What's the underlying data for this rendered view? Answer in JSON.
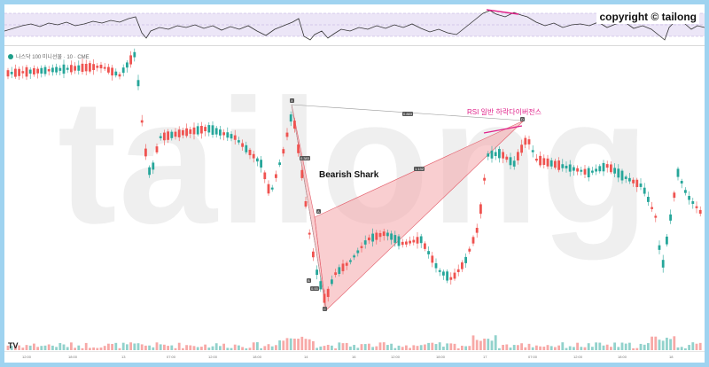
{
  "header": {
    "copyright": "copyright © tailong",
    "symbol": "나스닥 100 미니선물 · 10 · CME"
  },
  "watermark": "tailong",
  "annotations": {
    "pattern": "Bearish Shark",
    "divergence": "RSI 일반 하락다이버전스",
    "point_labels": [
      "X",
      "A",
      "B",
      "C",
      "D"
    ],
    "ratio_labels": [
      "0.883",
      "1.132",
      "0.383",
      "0.93"
    ]
  },
  "time_axis": [
    "12:00",
    "18:00",
    "13",
    "07:00",
    "12:00",
    "18:00",
    "14",
    "16",
    "12:00",
    "18:00",
    "17",
    "07:00",
    "12:00",
    "18:00",
    "18"
  ],
  "colors": {
    "up": "#26a69a",
    "down": "#ef5350",
    "pattern_fill": "#f4a6aa",
    "divergence": "#e0218a",
    "rsi_band": "#ece6f7"
  },
  "logo_text": "TV"
}
